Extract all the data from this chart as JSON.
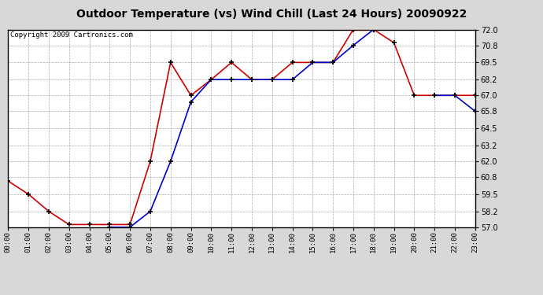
{
  "title": "Outdoor Temperature (vs) Wind Chill (Last 24 Hours) 20090922",
  "copyright": "Copyright 2009 Cartronics.com",
  "hours": [
    "00:00",
    "01:00",
    "02:00",
    "03:00",
    "04:00",
    "05:00",
    "06:00",
    "07:00",
    "08:00",
    "09:00",
    "10:00",
    "11:00",
    "12:00",
    "13:00",
    "14:00",
    "15:00",
    "16:00",
    "17:00",
    "18:00",
    "19:00",
    "20:00",
    "21:00",
    "22:00",
    "23:00"
  ],
  "temp_red": [
    60.5,
    59.5,
    58.2,
    57.2,
    57.2,
    57.2,
    57.2,
    62.0,
    69.5,
    67.0,
    68.2,
    69.5,
    68.2,
    68.2,
    69.5,
    69.5,
    69.5,
    72.0,
    72.0,
    71.0,
    67.0,
    67.0,
    67.0,
    67.0
  ],
  "wind_blue": [
    null,
    null,
    null,
    null,
    null,
    57.0,
    57.0,
    58.2,
    62.0,
    66.5,
    68.2,
    68.2,
    68.2,
    68.2,
    68.2,
    69.5,
    69.5,
    70.8,
    72.0,
    null,
    null,
    67.0,
    67.0,
    65.8
  ],
  "ylim": [
    57.0,
    72.0
  ],
  "yticks": [
    57.0,
    58.2,
    59.5,
    60.8,
    62.0,
    63.2,
    64.5,
    65.8,
    67.0,
    68.2,
    69.5,
    70.8,
    72.0
  ],
  "bg_color": "#d8d8d8",
  "plot_bg": "#ffffff",
  "red_color": "#cc0000",
  "blue_color": "#0000cc",
  "grid_color": "#aaaaaa",
  "title_fontsize": 10,
  "copyright_fontsize": 6.5
}
